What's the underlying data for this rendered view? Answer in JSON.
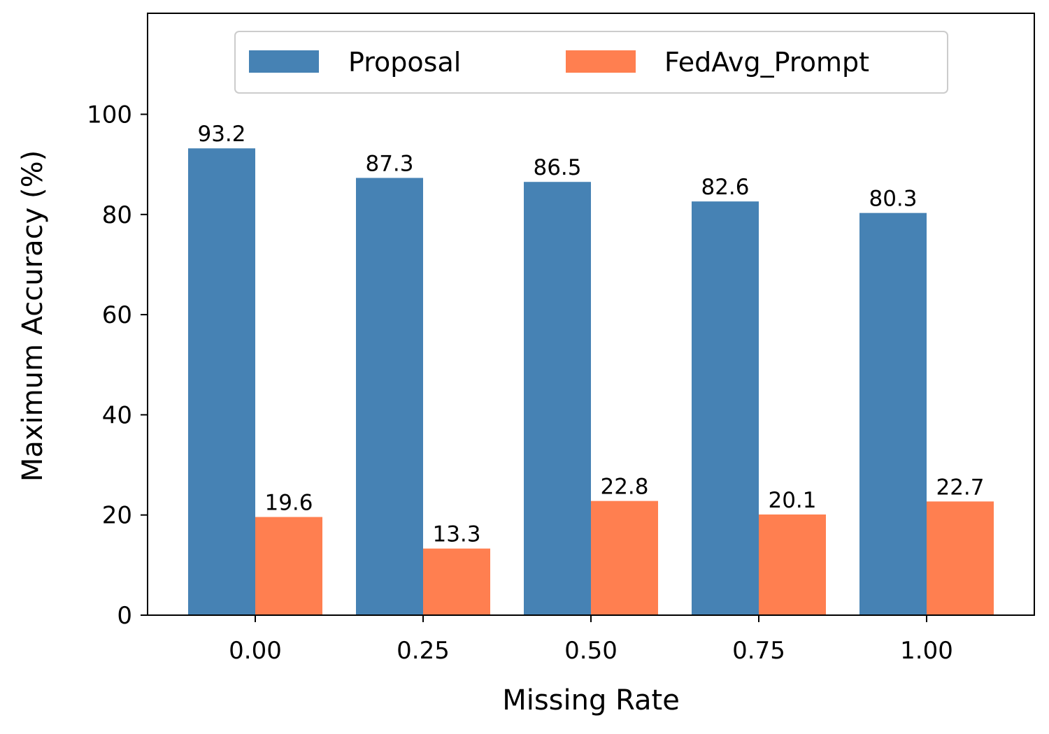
{
  "chart_data": {
    "type": "bar",
    "title": "",
    "xlabel": "Missing Rate",
    "ylabel": "Maximum Accuracy (%)",
    "categories": [
      "0.00",
      "0.25",
      "0.50",
      "0.75",
      "1.00"
    ],
    "series": [
      {
        "name": "Proposal",
        "color": "#4682b4",
        "values": [
          93.2,
          87.3,
          86.5,
          82.6,
          80.3
        ]
      },
      {
        "name": "FedAvg_Prompt",
        "color": "#ff7f50",
        "values": [
          19.6,
          13.3,
          22.8,
          20.1,
          22.7
        ]
      }
    ],
    "ylim": [
      0,
      119
    ],
    "yticks": [
      0,
      20,
      40,
      60,
      80,
      100
    ],
    "grid": false,
    "legend_position": "top-center"
  }
}
